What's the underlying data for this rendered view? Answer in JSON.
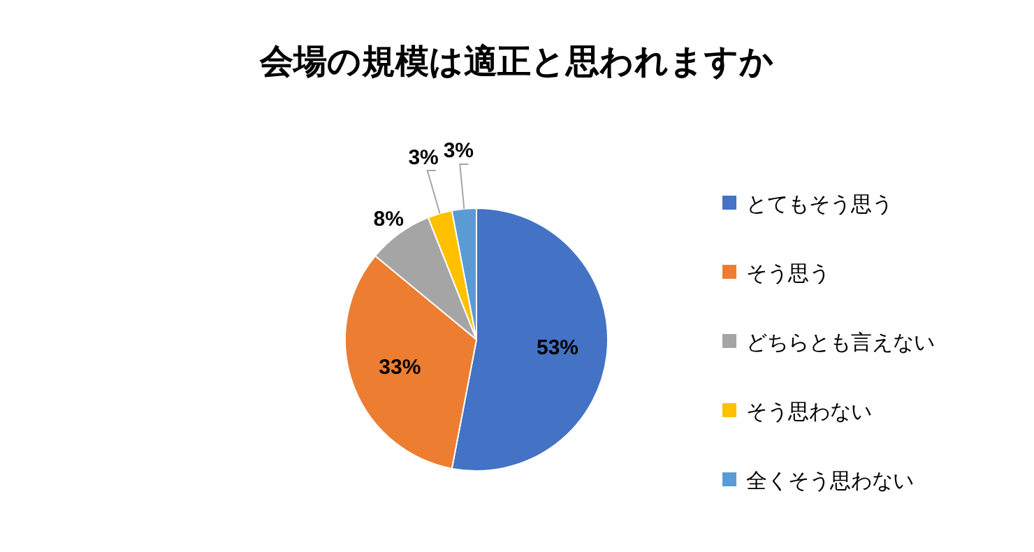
{
  "chart_data": {
    "type": "pie",
    "title": "会場の規模は適正と思われますか",
    "categories": [
      "とてもそう思う",
      "そう思う",
      "どちらとも言えない",
      "そう思わない",
      "全くそう思わない"
    ],
    "values": [
      53,
      33,
      8,
      3,
      3
    ],
    "colors": [
      "#4472c4",
      "#ed7d31",
      "#a5a5a5",
      "#ffc000",
      "#5b9bd5"
    ],
    "value_labels": [
      "53%",
      "33%",
      "8%",
      "3%",
      "3%"
    ],
    "legend": "right"
  }
}
